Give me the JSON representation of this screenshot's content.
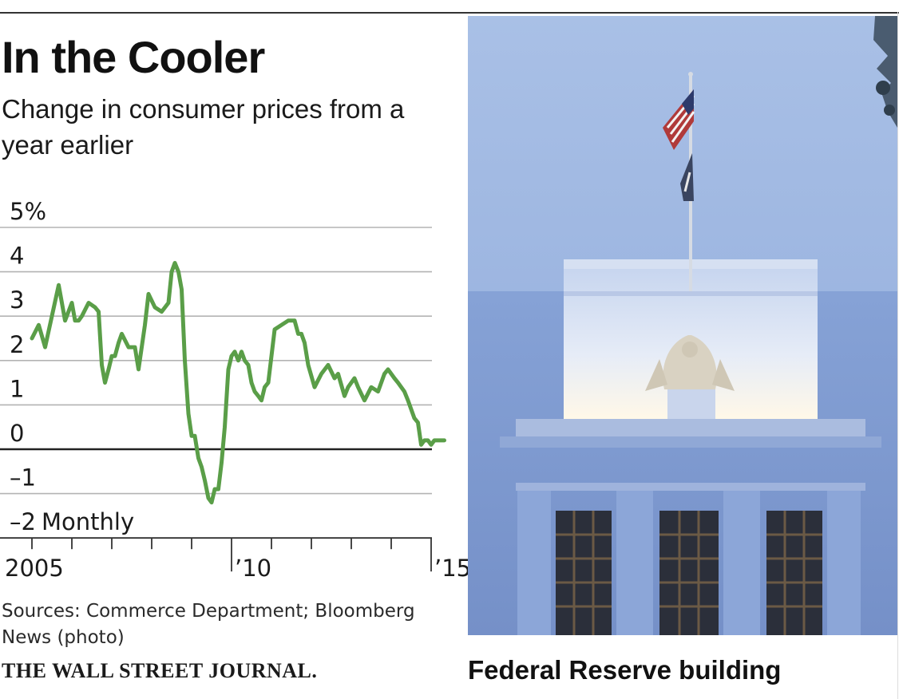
{
  "headline": "In the Cooler",
  "subhead": "Change in consumer prices from a year earlier",
  "source": "Sources: Commerce Department; Bloomberg News (photo)",
  "masthead": "THE WALL STREET JOURNAL.",
  "photo": {
    "caption": "Federal Reserve building"
  },
  "colors": {
    "series": "#5a9e48",
    "grid": "#b3b3b3",
    "zero_line": "#222222",
    "sky_top": "#a9c0e6",
    "sky_bottom": "#8aa6d8",
    "building": "#7f9bd0"
  },
  "chart_data": {
    "type": "line",
    "title": "In the Cooler",
    "subtitle": "Change in consumer prices from a year earlier",
    "series_label": "Monthly",
    "ylim": [
      -2,
      5
    ],
    "y_ticks": [
      -2,
      -1,
      0,
      1,
      2,
      3,
      4,
      5
    ],
    "y_tick_labels": [
      "–2",
      "–1",
      "0",
      "1",
      "2",
      "3",
      "4",
      "5%"
    ],
    "x_ticks": [
      2005,
      2006,
      2007,
      2008,
      2009,
      2010,
      2011,
      2012,
      2013,
      2014,
      2015
    ],
    "x_tick_labels": [
      {
        "year": 2005,
        "label": "2005"
      },
      {
        "year": 2010,
        "label": "’10"
      },
      {
        "year": 2015,
        "label": "’15"
      }
    ],
    "grid": true,
    "series": [
      {
        "x": [
          2005.0,
          2005.17,
          2005.33,
          2005.5,
          2005.67,
          2005.75,
          2005.83,
          2006.0,
          2006.08,
          2006.17,
          2006.25,
          2006.42,
          2006.58,
          2006.67,
          2006.75,
          2006.83,
          2006.92,
          2007.0,
          2007.08,
          2007.17,
          2007.25,
          2007.42,
          2007.58,
          2007.67,
          2007.83,
          2007.92,
          2008.08,
          2008.25,
          2008.42,
          2008.5,
          2008.58,
          2008.67,
          2008.75,
          2008.83,
          2008.92,
          2009.0,
          2009.08,
          2009.17,
          2009.25,
          2009.33,
          2009.42,
          2009.5,
          2009.58,
          2009.67,
          2009.75,
          2009.83,
          2009.92,
          2010.0,
          2010.08,
          2010.17,
          2010.25,
          2010.33,
          2010.42,
          2010.5,
          2010.58,
          2010.67,
          2010.75,
          2010.83,
          2010.92,
          2011.08,
          2011.25,
          2011.42,
          2011.58,
          2011.67,
          2011.75,
          2011.83,
          2011.92,
          2012.08,
          2012.25,
          2012.42,
          2012.58,
          2012.67,
          2012.83,
          2012.92,
          2013.08,
          2013.17,
          2013.33,
          2013.5,
          2013.67,
          2013.83,
          2013.92,
          2014.08,
          2014.17,
          2014.33,
          2014.42,
          2014.58,
          2014.67,
          2014.75,
          2014.83,
          2014.92,
          2015.0,
          2015.08,
          2015.17,
          2015.25,
          2015.33
        ],
        "y": [
          2.5,
          2.8,
          2.3,
          3.0,
          3.7,
          3.3,
          2.9,
          3.3,
          2.9,
          2.9,
          3.0,
          3.3,
          3.2,
          3.1,
          1.9,
          1.5,
          1.8,
          2.1,
          2.1,
          2.4,
          2.6,
          2.3,
          2.3,
          1.8,
          2.8,
          3.5,
          3.2,
          3.1,
          3.3,
          4.0,
          4.2,
          4.0,
          3.6,
          2.0,
          0.8,
          0.3,
          0.3,
          -0.2,
          -0.4,
          -0.7,
          -1.1,
          -1.2,
          -0.9,
          -0.9,
          -0.3,
          0.5,
          1.8,
          2.1,
          2.2,
          2.0,
          2.2,
          2.0,
          1.9,
          1.5,
          1.3,
          1.2,
          1.1,
          1.4,
          1.5,
          2.7,
          2.8,
          2.9,
          2.9,
          2.6,
          2.6,
          2.4,
          1.9,
          1.4,
          1.7,
          1.9,
          1.6,
          1.7,
          1.2,
          1.4,
          1.6,
          1.4,
          1.1,
          1.4,
          1.3,
          1.7,
          1.8,
          1.6,
          1.5,
          1.3,
          1.1,
          0.7,
          0.6,
          0.1,
          0.2,
          0.2,
          0.1,
          0.2,
          0.2,
          0.2,
          0.2
        ]
      }
    ]
  }
}
